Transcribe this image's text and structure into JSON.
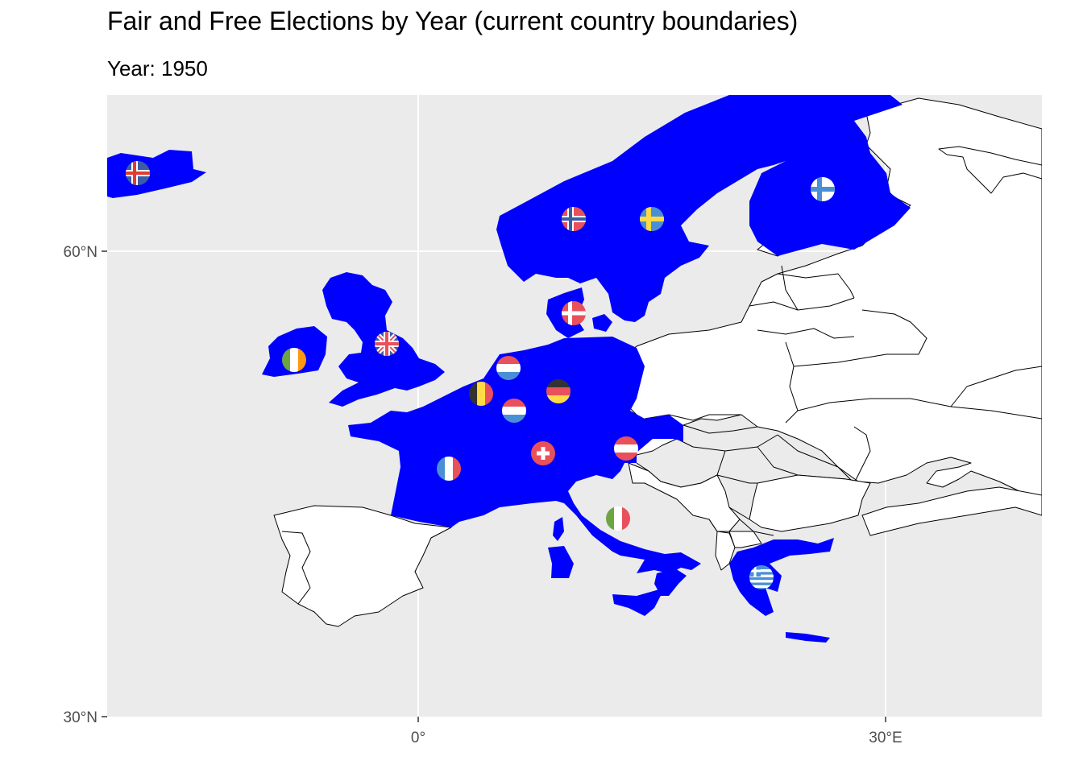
{
  "title": "Fair and Free Elections by Year (current country boundaries)",
  "subtitle": "Year: 1950",
  "axes": {
    "y_ticks": [
      {
        "label": "60°N",
        "value": 60
      },
      {
        "label": "30°N",
        "value": 30
      }
    ],
    "x_ticks": [
      {
        "label": "0°",
        "value": 0
      },
      {
        "label": "30°E",
        "value": 30
      }
    ]
  },
  "colors": {
    "panel_background": "#ebebeb",
    "gridline": "#ffffff",
    "fair_free": "#0000ff",
    "other_country": "#ffffff",
    "border": "#000000"
  },
  "legend": "none",
  "chart_data": {
    "type": "map",
    "region": "Europe",
    "year": 1950,
    "fill_meaning": "blue = fair and free elections held",
    "countries_fair_free": [
      {
        "name": "Iceland",
        "flag": "flag-iceland"
      },
      {
        "name": "Norway",
        "flag": "flag-norway"
      },
      {
        "name": "Sweden",
        "flag": "flag-sweden"
      },
      {
        "name": "Finland",
        "flag": "flag-finland"
      },
      {
        "name": "Denmark",
        "flag": "flag-denmark"
      },
      {
        "name": "United Kingdom",
        "flag": "flag-uk"
      },
      {
        "name": "Ireland",
        "flag": "flag-ireland"
      },
      {
        "name": "Netherlands",
        "flag": "flag-netherlands"
      },
      {
        "name": "Belgium",
        "flag": "flag-belgium"
      },
      {
        "name": "Luxembourg",
        "flag": "flag-luxembourg"
      },
      {
        "name": "Germany",
        "flag": "flag-germany"
      },
      {
        "name": "France",
        "flag": "flag-france"
      },
      {
        "name": "Switzerland",
        "flag": "flag-switzerland"
      },
      {
        "name": "Austria",
        "flag": "flag-austria"
      },
      {
        "name": "Italy",
        "flag": "flag-italy"
      },
      {
        "name": "Greece",
        "flag": "flag-greece"
      }
    ],
    "countries_other": [
      "Spain",
      "Portugal",
      "Poland",
      "Czechoslovakia",
      "Hungary",
      "Yugoslavia",
      "Albania",
      "Romania",
      "Bulgaria",
      "Soviet Union",
      "Turkey"
    ]
  }
}
